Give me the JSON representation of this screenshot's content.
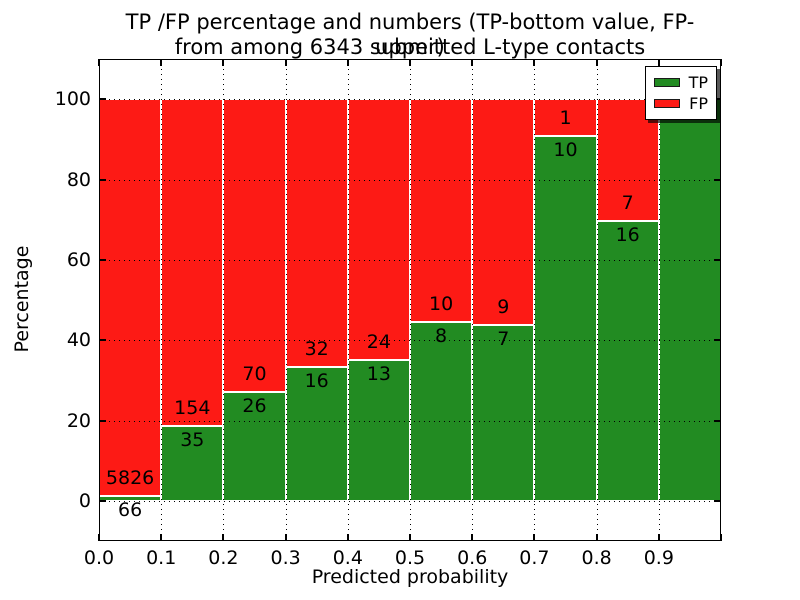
{
  "figure": {
    "title_line1": "TP /FP percentage and numbers (TP-bottom value, FP-upper)",
    "title_line2": "from among 6343 submitted L-type contacts"
  },
  "axes": {
    "xlabel": "Predicted probability",
    "ylabel": "Percentage",
    "xtick_labels": [
      "0.0",
      "0.1",
      "0.2",
      "0.3",
      "0.4",
      "0.5",
      "0.6",
      "0.7",
      "0.8",
      "0.9"
    ],
    "ytick_labels": [
      "0",
      "20",
      "40",
      "60",
      "80",
      "100"
    ]
  },
  "legend": {
    "items": [
      {
        "label": "TP",
        "color": "#228b22"
      },
      {
        "label": "FP",
        "color": "#fd1a15"
      }
    ]
  },
  "chart_data": {
    "type": "bar",
    "stacked": true,
    "normalized": "each bin scaled to 100%",
    "title": "TP /FP percentage and numbers (TP-bottom value, FP-upper) from among 6343 submitted L-type contacts",
    "xlabel": "Predicted probability",
    "ylabel": "Percentage",
    "xlim": [
      0.0,
      1.0
    ],
    "ylim": [
      -10,
      110
    ],
    "xticks": [
      0.0,
      0.1,
      0.2,
      0.3,
      0.4,
      0.5,
      0.6,
      0.7,
      0.8,
      0.9
    ],
    "yticks": [
      0,
      20,
      40,
      60,
      80,
      100
    ],
    "grid": true,
    "grid_style": "dotted",
    "legend_position": "upper right",
    "total_contacts": 6343,
    "bin_edges": [
      0.0,
      0.1,
      0.2,
      0.3,
      0.4,
      0.5,
      0.6,
      0.7,
      0.8,
      0.9,
      1.0
    ],
    "categories": [
      "0.0-0.1",
      "0.1-0.2",
      "0.2-0.3",
      "0.3-0.4",
      "0.4-0.5",
      "0.5-0.6",
      "0.6-0.7",
      "0.7-0.8",
      "0.8-0.9",
      "0.9-1.0"
    ],
    "series": [
      {
        "name": "TP",
        "color": "#228b22",
        "position": "bottom",
        "counts": [
          66,
          35,
          26,
          16,
          13,
          8,
          7,
          10,
          16,
          13
        ]
      },
      {
        "name": "FP",
        "color": "#fd1a15",
        "position": "top",
        "counts": [
          5826,
          154,
          70,
          32,
          24,
          10,
          9,
          1,
          7,
          0
        ]
      }
    ],
    "tp_percent_by_bin": [
      1.12,
      18.52,
      27.08,
      33.33,
      35.14,
      44.44,
      43.75,
      90.91,
      69.57,
      100.0
    ]
  }
}
